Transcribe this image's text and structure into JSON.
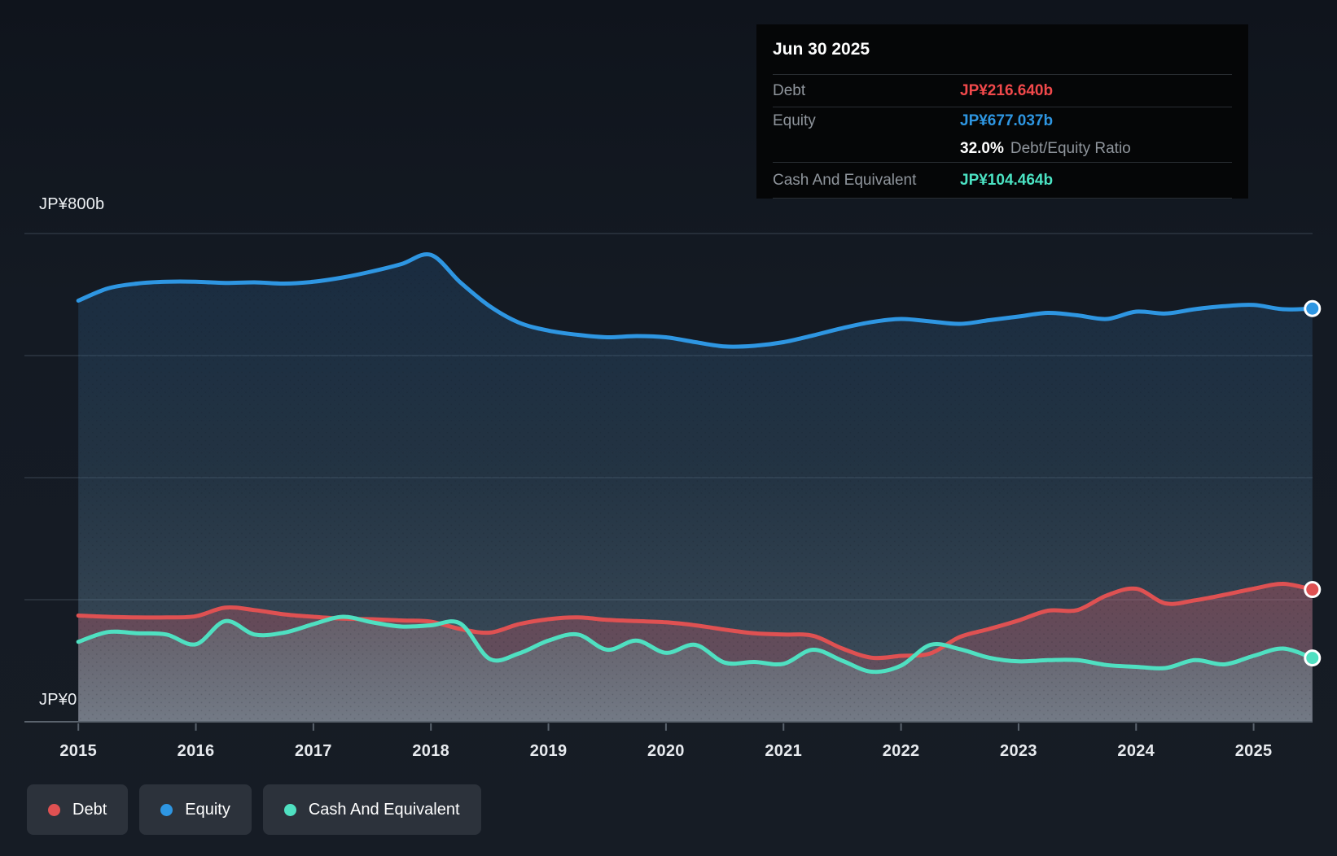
{
  "colors": {
    "debt": "#df5152",
    "equity": "#2e96e2",
    "cash": "#4fe0c1",
    "debt_tooltip": "#f1494b",
    "equity_tooltip": "#2e96e2",
    "cash_tooltip": "#4be3c3",
    "marker_ring": "#ffffff",
    "gridline": "#3a4450",
    "axis_line": "#5a636d"
  },
  "tooltip": {
    "date": "Jun 30 2025",
    "debt_label": "Debt",
    "debt_value": "JP¥216.640b",
    "equity_label": "Equity",
    "equity_value": "JP¥677.037b",
    "ratio_value": "32.0%",
    "ratio_label": "Debt/Equity Ratio",
    "cash_label": "Cash And Equivalent",
    "cash_value": "JP¥104.464b"
  },
  "y_axis": {
    "top_label": "JP¥800b",
    "zero_label": "JP¥0",
    "min": 0,
    "max": 800,
    "gridlines": [
      0,
      200,
      400,
      600,
      800
    ]
  },
  "x_axis": {
    "years": [
      "2015",
      "2016",
      "2017",
      "2018",
      "2019",
      "2020",
      "2021",
      "2022",
      "2023",
      "2024",
      "2025"
    ]
  },
  "legend": {
    "items": [
      {
        "label": "Debt",
        "color_key": "debt"
      },
      {
        "label": "Equity",
        "color_key": "equity"
      },
      {
        "label": "Cash And Equivalent",
        "color_key": "cash"
      }
    ]
  },
  "chart_data": {
    "type": "area",
    "unit": "JP¥ billions",
    "x": {
      "start": 2015.0,
      "step": 0.25,
      "end": 2025.5
    },
    "xlabel": "",
    "ylabel": "JP¥ billions",
    "ylim": [
      0,
      800
    ],
    "grid": "horizontal",
    "legend_position": "bottom-left",
    "series": [
      {
        "name": "Equity",
        "color_key": "equity",
        "end_value": 677.037,
        "values": [
          690,
          710,
          718,
          721,
          721,
          719,
          720,
          718,
          721,
          728,
          738,
          750,
          765,
          720,
          681,
          654,
          641,
          634,
          630,
          632,
          630,
          622,
          615,
          616,
          622,
          633,
          645,
          655,
          660,
          656,
          652,
          658,
          664,
          670,
          666,
          660,
          672,
          669,
          676,
          681,
          683,
          676,
          677
        ]
      },
      {
        "name": "Debt",
        "color_key": "debt",
        "end_value": 216.64,
        "values": [
          174,
          172,
          171,
          171,
          173,
          187,
          183,
          176,
          172,
          169,
          168,
          166,
          164,
          152,
          146,
          160,
          168,
          171,
          167,
          165,
          163,
          158,
          151,
          145,
          143,
          141,
          120,
          105,
          108,
          112,
          139,
          152,
          166,
          182,
          183,
          207,
          218,
          194,
          199,
          208,
          218,
          226,
          216.6
        ]
      },
      {
        "name": "Cash And Equivalent",
        "color_key": "cash",
        "end_value": 104.464,
        "values": [
          131,
          147,
          145,
          143,
          127,
          165,
          143,
          146,
          160,
          172,
          163,
          156,
          158,
          161,
          103,
          112,
          133,
          143,
          118,
          133,
          113,
          126,
          97,
          98,
          95,
          118,
          100,
          82,
          92,
          126,
          119,
          105,
          99,
          101,
          101,
          93,
          90,
          88,
          101,
          94,
          108,
          120,
          104.5
        ]
      }
    ]
  }
}
